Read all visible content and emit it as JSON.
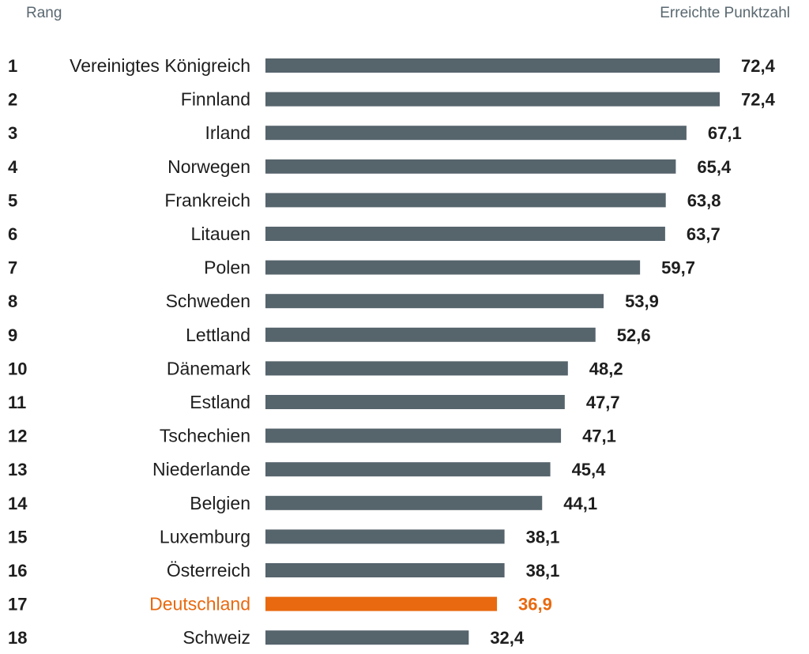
{
  "header": {
    "left_label": "Rang",
    "right_label": "Erreichte Punktzahl"
  },
  "colors": {
    "bar": "#56646c",
    "highlight": "#e8690f",
    "text": "#1e1e1e"
  },
  "chart_data": {
    "type": "bar",
    "orientation": "horizontal",
    "xlim": [
      0,
      72.4
    ],
    "highlight": "Deutschland",
    "rows": [
      {
        "rank": "1",
        "country": "Vereinigtes Königreich",
        "value": 72.4,
        "label": "72,4"
      },
      {
        "rank": "2",
        "country": "Finnland",
        "value": 72.4,
        "label": "72,4"
      },
      {
        "rank": "3",
        "country": "Irland",
        "value": 67.1,
        "label": "67,1"
      },
      {
        "rank": "4",
        "country": "Norwegen",
        "value": 65.4,
        "label": "65,4"
      },
      {
        "rank": "5",
        "country": "Frankreich",
        "value": 63.8,
        "label": "63,8"
      },
      {
        "rank": "6",
        "country": "Litauen",
        "value": 63.7,
        "label": "63,7"
      },
      {
        "rank": "7",
        "country": "Polen",
        "value": 59.7,
        "label": "59,7"
      },
      {
        "rank": "8",
        "country": "Schweden",
        "value": 53.9,
        "label": "53,9"
      },
      {
        "rank": "9",
        "country": "Lettland",
        "value": 52.6,
        "label": "52,6"
      },
      {
        "rank": "10",
        "country": "Dänemark",
        "value": 48.2,
        "label": "48,2"
      },
      {
        "rank": "11",
        "country": "Estland",
        "value": 47.7,
        "label": "47,7"
      },
      {
        "rank": "12",
        "country": "Tschechien",
        "value": 47.1,
        "label": "47,1"
      },
      {
        "rank": "13",
        "country": "Niederlande",
        "value": 45.4,
        "label": "45,4"
      },
      {
        "rank": "14",
        "country": "Belgien",
        "value": 44.1,
        "label": "44,1"
      },
      {
        "rank": "15",
        "country": "Luxemburg",
        "value": 38.1,
        "label": "38,1"
      },
      {
        "rank": "16",
        "country": "Österreich",
        "value": 38.1,
        "label": "38,1"
      },
      {
        "rank": "17",
        "country": "Deutschland",
        "value": 36.9,
        "label": "36,9"
      },
      {
        "rank": "18",
        "country": "Schweiz",
        "value": 32.4,
        "label": "32,4"
      }
    ]
  }
}
